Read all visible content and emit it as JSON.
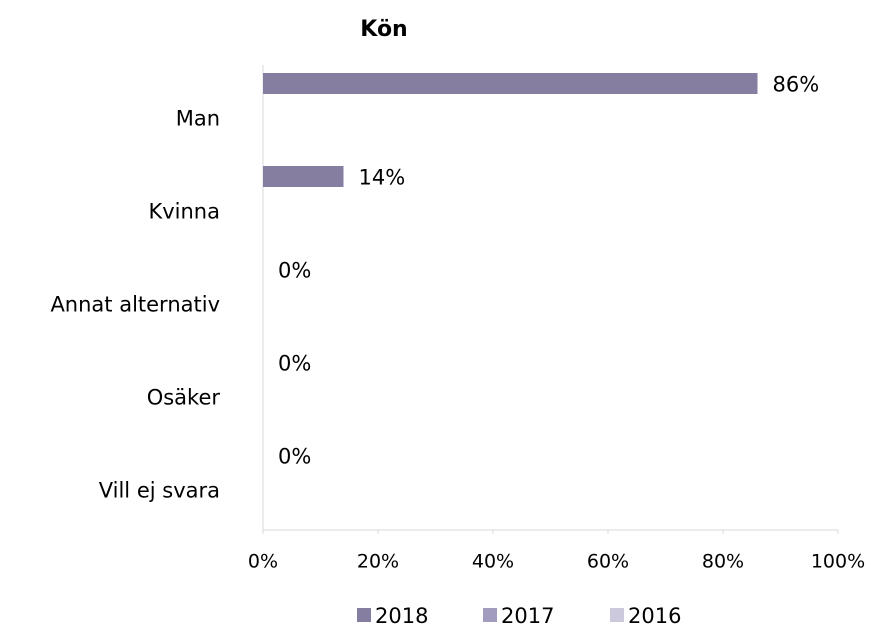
{
  "chart_data": {
    "type": "bar",
    "orientation": "horizontal",
    "title": "Kön",
    "categories": [
      "Man",
      "Kvinna",
      "Annat alternativ",
      "Osäker",
      "Vill ej svara"
    ],
    "series": [
      {
        "name": "2018",
        "color": "#857ea0",
        "values": [
          86,
          14,
          0,
          0,
          0
        ],
        "value_labels": [
          "86%",
          "14%",
          "0%",
          "0%",
          "0%"
        ]
      },
      {
        "name": "2017",
        "color": "#a29dbf",
        "values": [
          null,
          null,
          null,
          null,
          null
        ]
      },
      {
        "name": "2016",
        "color": "#cdc9dc",
        "values": [
          null,
          null,
          null,
          null,
          null
        ]
      }
    ],
    "xlim": [
      0,
      100
    ],
    "xticks": [
      {
        "value": 0,
        "label": "0%"
      },
      {
        "value": 20,
        "label": "20%"
      },
      {
        "value": 40,
        "label": "40%"
      },
      {
        "value": 60,
        "label": "60%"
      },
      {
        "value": 80,
        "label": "80%"
      },
      {
        "value": 100,
        "label": "100%"
      }
    ],
    "legend": "bottom"
  }
}
